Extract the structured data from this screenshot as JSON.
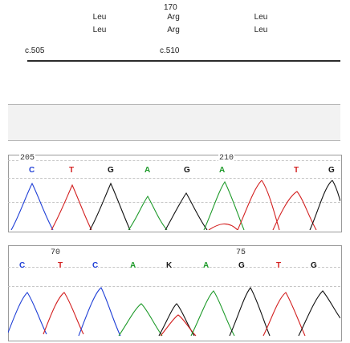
{
  "annotation": {
    "codon_number": "170",
    "row1": [
      "Leu",
      "Arg",
      "Leu"
    ],
    "row2": [
      "Leu",
      "Arg",
      "Leu"
    ],
    "cdna_left": "c.505",
    "cdna_right": "c.510"
  },
  "trace1": {
    "ruler": [
      "205",
      "210"
    ],
    "bases": [
      "C",
      "T",
      "G",
      "A",
      "G",
      "A",
      "T",
      "G"
    ],
    "colors": {
      "C": "#1f3fd6",
      "T": "#d32020",
      "G": "#111111",
      "A": "#1e9a2a"
    }
  },
  "trace2": {
    "ruler": [
      "70",
      "75"
    ],
    "bases": [
      "C",
      "T",
      "C",
      "A",
      "K",
      "A",
      "G",
      "T",
      "G"
    ],
    "colors": {
      "C": "#1f3fd6",
      "T": "#d32020",
      "G": "#111111",
      "A": "#1e9a2a",
      "K": "#1a1a1a"
    }
  }
}
